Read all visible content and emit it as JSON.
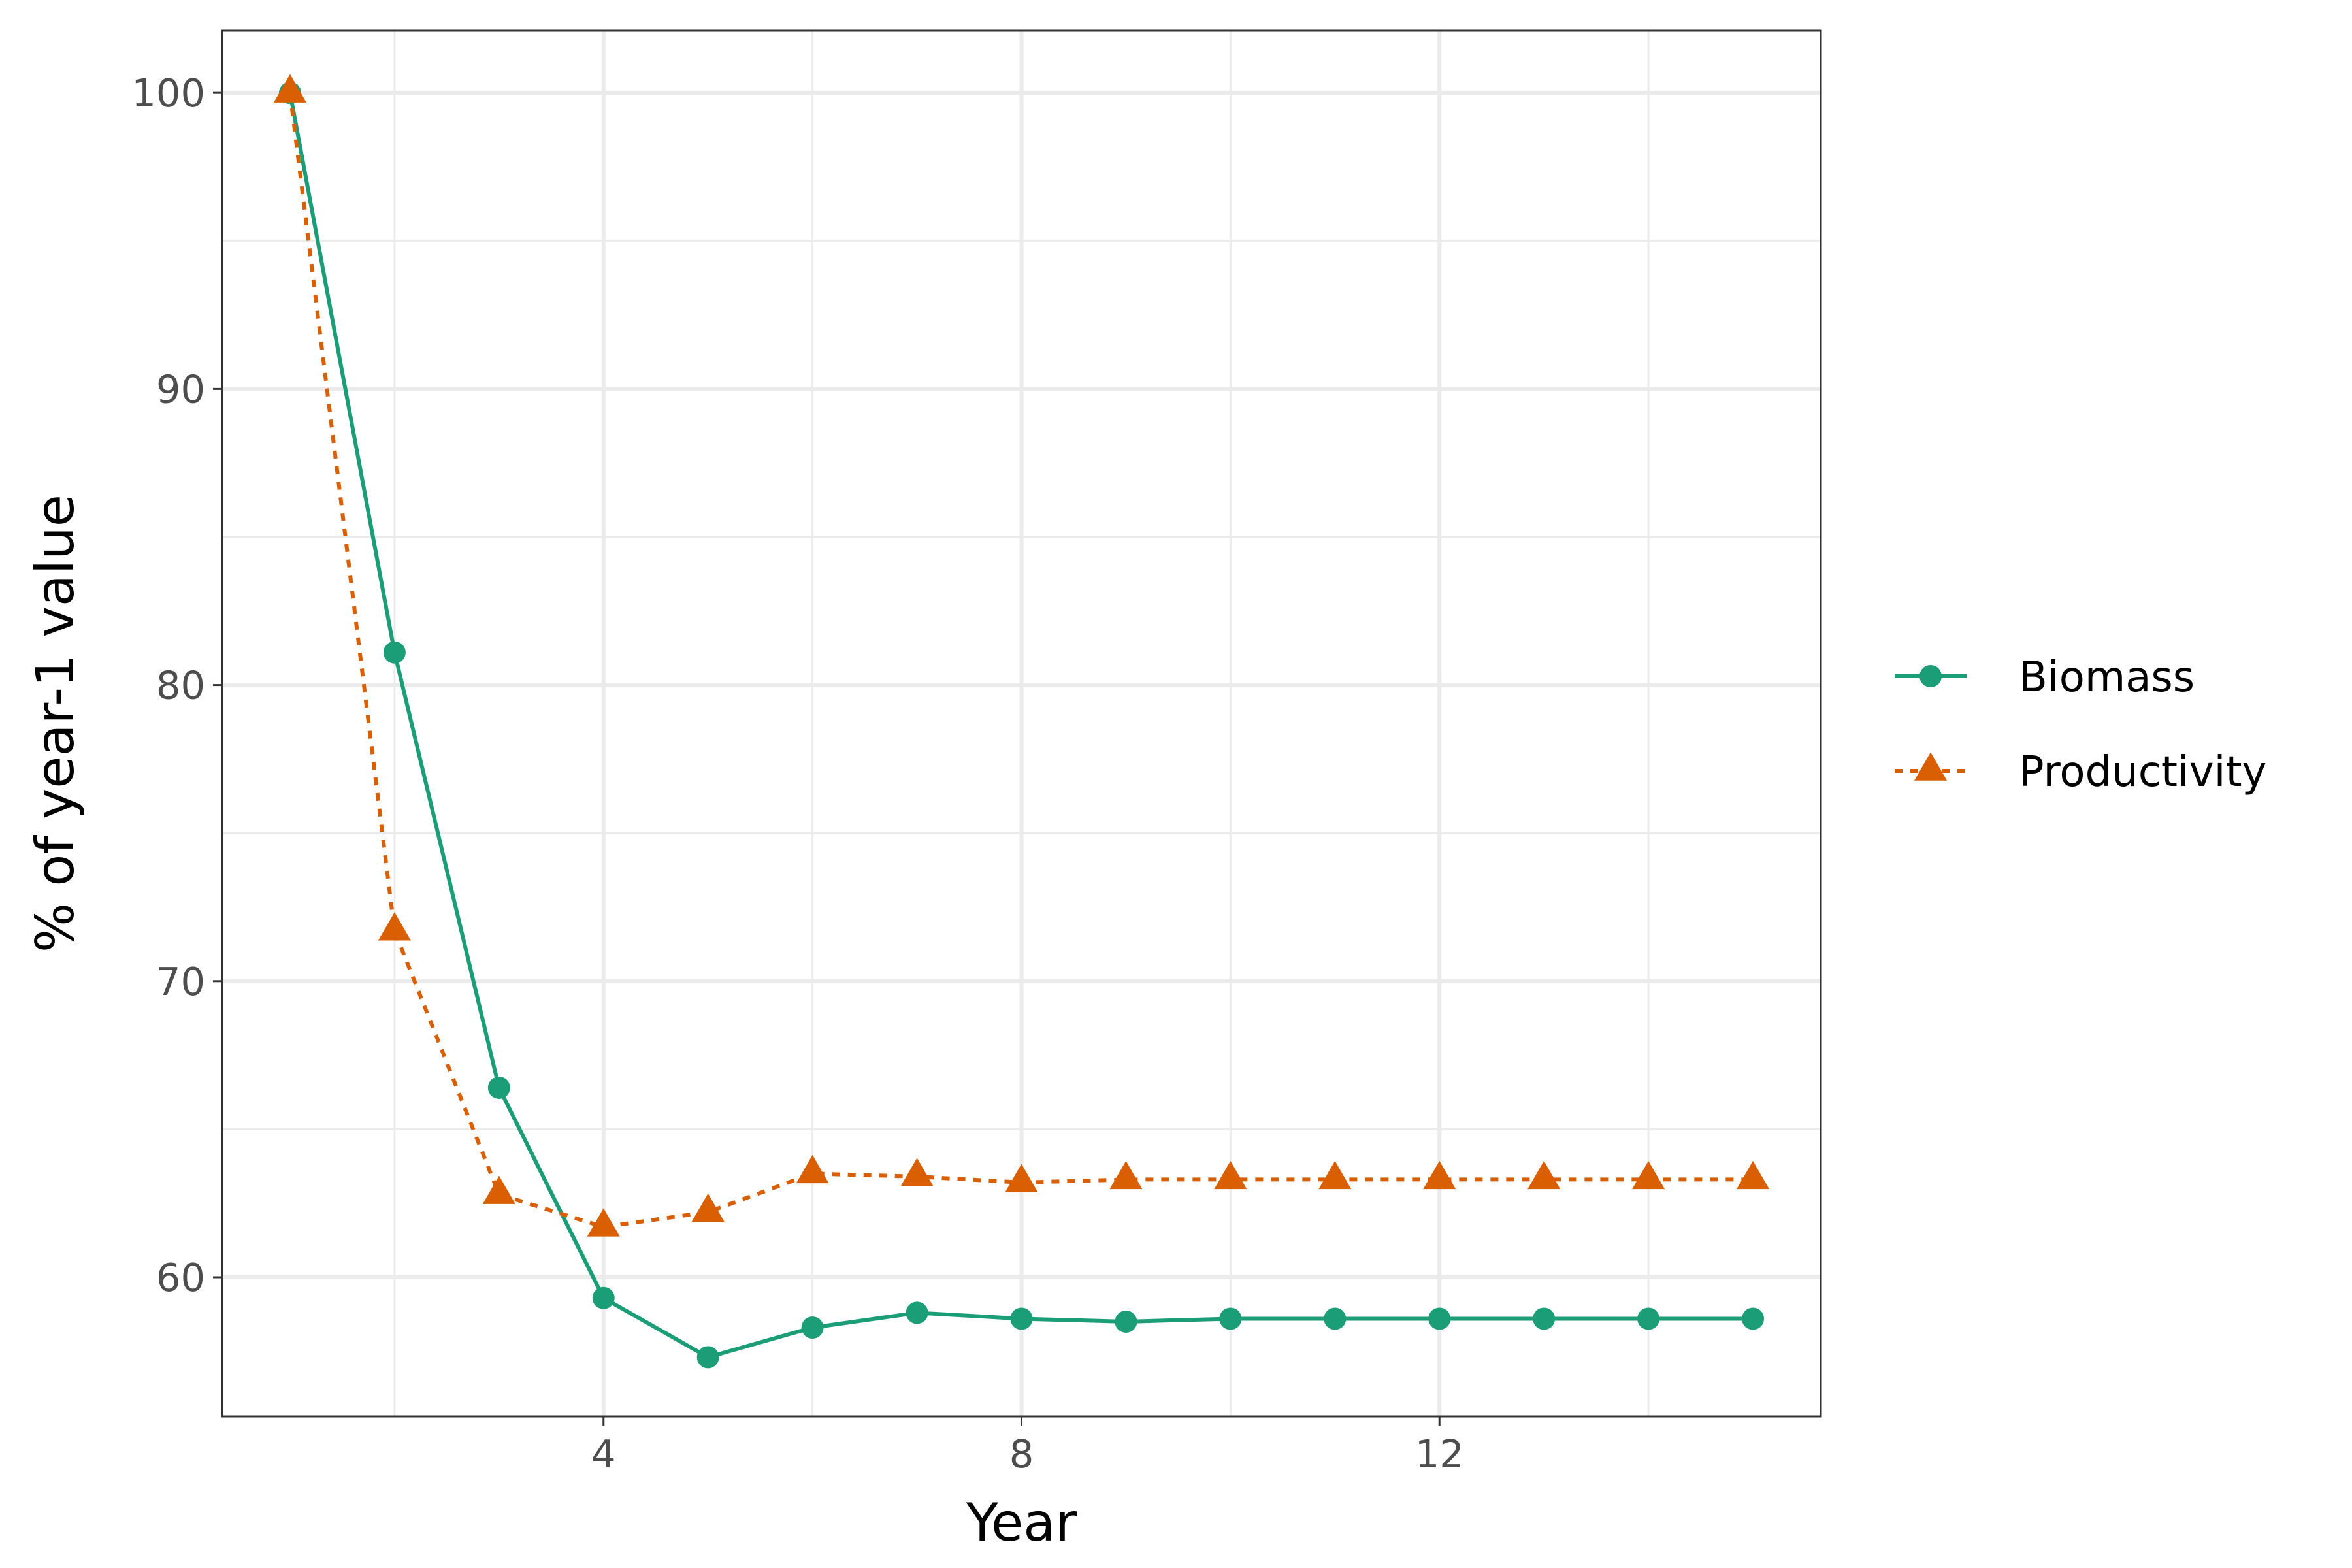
{
  "chart_data": {
    "type": "line",
    "title": "",
    "xlabel": "Year",
    "ylabel": "% of year-1 value",
    "xlim": [
      0.35,
      15.65
    ],
    "ylim": [
      55.3,
      102.1
    ],
    "x_ticks": [
      4,
      8,
      12
    ],
    "x_tick_labels": [
      "4",
      "8",
      "12"
    ],
    "y_ticks": [
      60,
      70,
      80,
      90,
      100
    ],
    "y_tick_labels": [
      "60",
      "70",
      "80",
      "90",
      "100"
    ],
    "grid": true,
    "legend_position": "right",
    "x": [
      1,
      2,
      3,
      4,
      5,
      6,
      7,
      8,
      9,
      10,
      11,
      12,
      13,
      14,
      15
    ],
    "series": [
      {
        "name": "Biomass",
        "color": "#1b9e77",
        "line_style": "solid",
        "marker": "circle",
        "values": [
          100,
          81.1,
          66.4,
          59.3,
          57.3,
          58.3,
          58.8,
          58.6,
          58.5,
          58.6,
          58.6,
          58.6,
          58.6,
          58.6,
          58.6
        ]
      },
      {
        "name": "Productivity",
        "color": "#d95f02",
        "line_style": "dotted",
        "marker": "triangle",
        "values": [
          100,
          71.7,
          62.8,
          61.7,
          62.2,
          63.5,
          63.4,
          63.2,
          63.3,
          63.3,
          63.3,
          63.3,
          63.3,
          63.3,
          63.3
        ]
      }
    ]
  }
}
